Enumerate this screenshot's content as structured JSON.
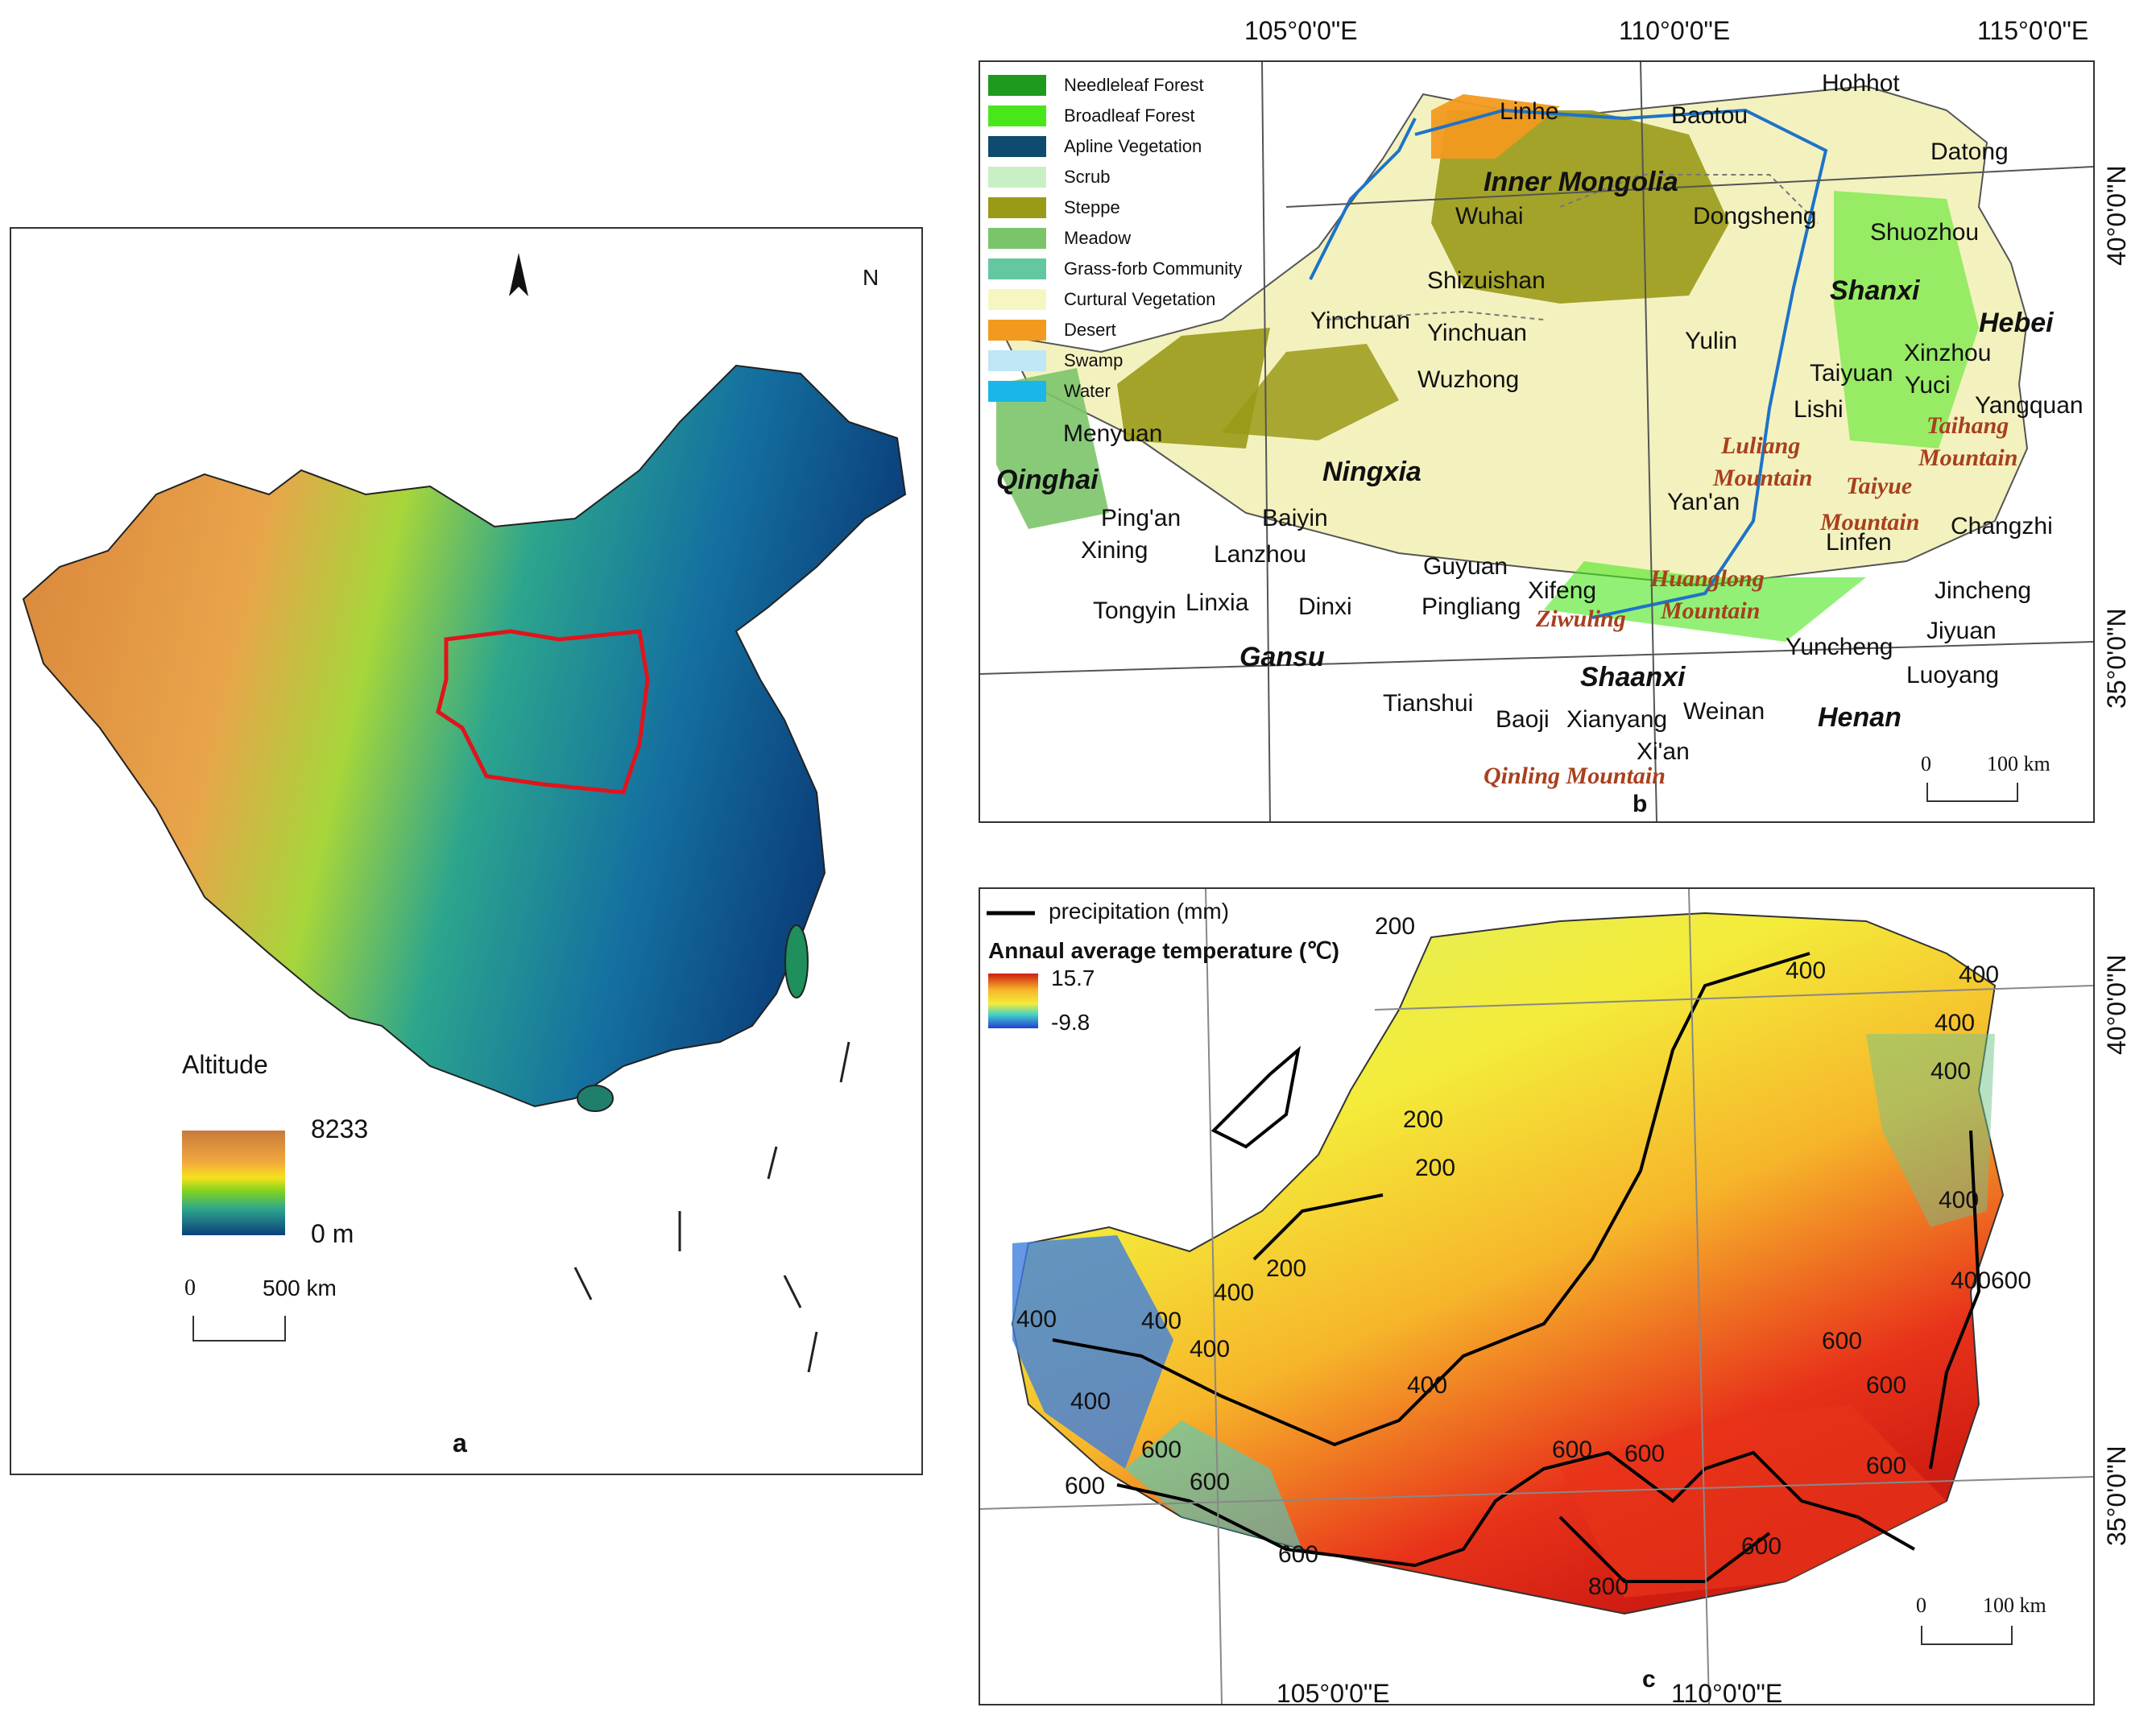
{
  "panel_a": {
    "letter": "a",
    "north": "N",
    "legend_title": "Altitude",
    "legend_max": "8233",
    "legend_min": "0 m",
    "scale_zero": "0",
    "scale_label": "500  km",
    "colors": {
      "low": "#0b3f7a",
      "mid": "#2ca58d",
      "green": "#7ed321",
      "yellow": "#f7e11c",
      "high": "#e07b2a",
      "top": "#b6783c"
    }
  },
  "panel_b": {
    "letter": "b",
    "legend": [
      {
        "label": "Needleleaf Forest",
        "color": "#1e9a1e"
      },
      {
        "label": "Broadleaf Forest",
        "color": "#4ae61c"
      },
      {
        "label": "Apline Vegetation",
        "color": "#0f4b6e"
      },
      {
        "label": "Scrub",
        "color": "#c9f0c4"
      },
      {
        "label": "Steppe",
        "color": "#9a9a18"
      },
      {
        "label": "Meadow",
        "color": "#7cc46a"
      },
      {
        "label": "Grass-forb Community",
        "color": "#63c7a0"
      },
      {
        "label": "Curtural Vegetation",
        "color": "#f6f6c2"
      },
      {
        "label": "Desert",
        "color": "#f29a1f"
      },
      {
        "label": "Swamp",
        "color": "#bfe7f5"
      },
      {
        "label": "Water",
        "color": "#1ab6ea"
      }
    ],
    "coords_top": [
      "105°0'0\"E",
      "110°0'0\"E",
      "115°0'0\"E"
    ],
    "coords_right": [
      "40°0'0\"N",
      "35°0'0\"N"
    ],
    "provinces": [
      "Inner Mongolia",
      "Ningxia",
      "Qinghai",
      "Gansu",
      "Shaanxi",
      "Shanxi",
      "Hebei",
      "Henan"
    ],
    "cities": [
      "Hohhot",
      "Linhe",
      "Baotou",
      "Datong",
      "Wuhai",
      "Dongsheng",
      "Shuozhou",
      "Shizuishan",
      "Yinchuan",
      "Yinchuan",
      "Yulin",
      "Xinzhou",
      "Wuzhong",
      "Taiyuan",
      "Yuci",
      "Yangquan",
      "Menyuan",
      "Lishi",
      "Ping'an",
      "Baiyin",
      "Yan'an",
      "Changzhi",
      "Xining",
      "Lanzhou",
      "Linfen",
      "Guyuan",
      "Xifeng",
      "Jincheng",
      "Tongyin",
      "Linxia",
      "Dinxi",
      "Pingliang",
      "Jiyuan",
      "Yuncheng",
      "Luoyang",
      "Tianshui",
      "Baoji",
      "Xianyang",
      "Weinan",
      "Xi'an"
    ],
    "mountains": [
      "Luliang",
      "Mountain",
      "Taihang",
      "Mountain",
      "Taiyue",
      "Mountain",
      "Huanglong",
      "Mountain",
      "Ziwuling",
      "Qinling Mountain"
    ],
    "scale_zero": "0",
    "scale_label": "100 km"
  },
  "panel_c": {
    "letter": "c",
    "precip_label": "precipitation (mm)",
    "temp_title": "Annaul average temperature (℃)",
    "temp_max": "15.7",
    "temp_min": "-9.8",
    "contours": [
      "200",
      "200",
      "200",
      "200",
      "400",
      "400",
      "400",
      "400",
      "400",
      "400",
      "400",
      "400",
      "400",
      "400",
      "400",
      "400",
      "600",
      "600",
      "600",
      "600",
      "600",
      "600",
      "600",
      "600",
      "600",
      "600",
      "800",
      "600"
    ],
    "coords_bottom": [
      "105°0'0\"E",
      "110°0'0\"E"
    ],
    "coords_right": [
      "40°0'0\"N",
      "35°0'0\"N"
    ],
    "scale_zero": "0",
    "scale_label": "100 km"
  }
}
